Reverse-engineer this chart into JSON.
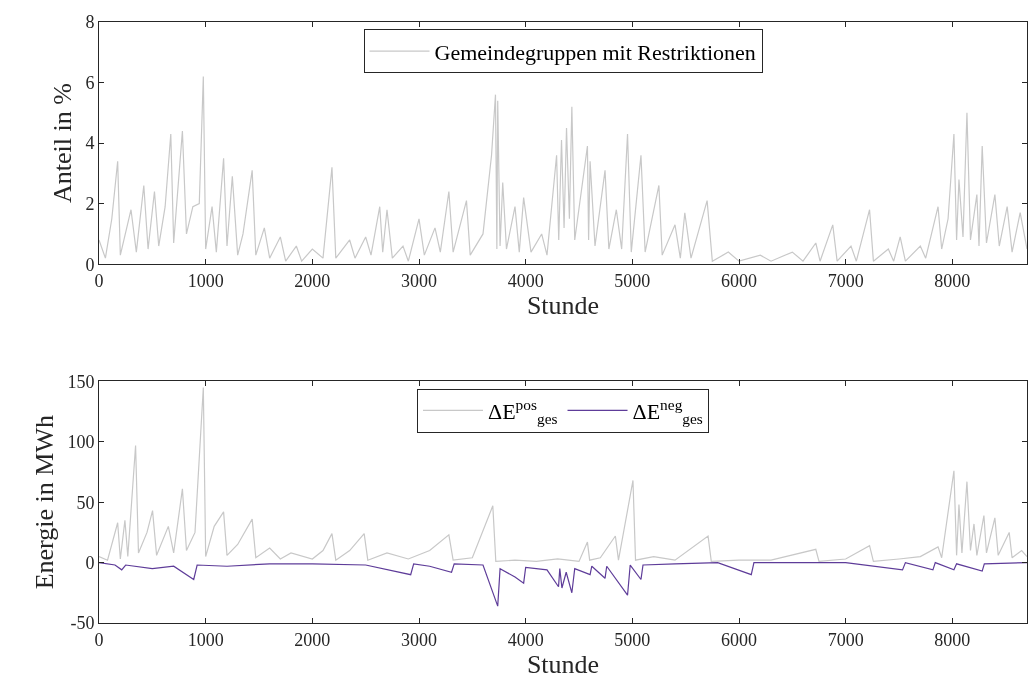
{
  "chart_data": [
    {
      "type": "line",
      "xlabel": "Stunde",
      "ylabel": "Anteil in %",
      "xlim": [
        0,
        8700
      ],
      "xticks": [
        0,
        1000,
        2000,
        3000,
        4000,
        5000,
        6000,
        7000,
        8000
      ],
      "ylim": [
        0,
        8
      ],
      "yticks": [
        0,
        2,
        4,
        6,
        8
      ],
      "legend": "top",
      "marker": "none",
      "line_style": "solid",
      "series": [
        {
          "name": "Gemeindegruppen mit Restriktionen",
          "color": "#c8c8c8",
          "x": [
            0,
            60,
            120,
            175,
            200,
            300,
            350,
            420,
            460,
            520,
            560,
            620,
            673,
            700,
            782,
            820,
            880,
            940,
            978,
            1000,
            1060,
            1100,
            1168,
            1200,
            1250,
            1300,
            1350,
            1436,
            1470,
            1550,
            1600,
            1700,
            1750,
            1850,
            1900,
            2000,
            2100,
            2184,
            2220,
            2350,
            2400,
            2500,
            2550,
            2632,
            2660,
            2700,
            2750,
            2850,
            2900,
            3000,
            3050,
            3150,
            3200,
            3280,
            3320,
            3445,
            3480,
            3600,
            3680,
            3717,
            3730,
            3738,
            3760,
            3785,
            3820,
            3900,
            3940,
            3981,
            4050,
            4150,
            4200,
            4290,
            4310,
            4336,
            4360,
            4383,
            4410,
            4433,
            4460,
            4579,
            4590,
            4604,
            4650,
            4744,
            4780,
            4850,
            4900,
            4955,
            4990,
            5081,
            5120,
            5249,
            5280,
            5400,
            5450,
            5492,
            5550,
            5701,
            5750,
            5900,
            6000,
            6200,
            6300,
            6500,
            6600,
            6720,
            6760,
            6879,
            6920,
            7050,
            7100,
            7224,
            7260,
            7400,
            7450,
            7511,
            7560,
            7700,
            7750,
            7866,
            7900,
            7960,
            8015,
            8040,
            8062,
            8100,
            8137,
            8170,
            8230,
            8250,
            8280,
            8320,
            8399,
            8440,
            8514,
            8560,
            8636,
            8700
          ],
          "values": [
            0.8,
            0.2,
            1.5,
            3.4,
            0.3,
            1.8,
            0.4,
            2.6,
            0.5,
            2.4,
            0.6,
            1.9,
            4.3,
            0.7,
            4.4,
            1.0,
            1.9,
            2.0,
            6.2,
            0.5,
            1.9,
            0.4,
            3.5,
            0.6,
            2.9,
            0.3,
            1.0,
            3.1,
            0.3,
            1.2,
            0.2,
            0.9,
            0.1,
            0.6,
            0.1,
            0.5,
            0.2,
            3.2,
            0.2,
            0.8,
            0.2,
            0.9,
            0.3,
            1.9,
            0.4,
            1.8,
            0.2,
            0.6,
            0.1,
            1.5,
            0.3,
            1.2,
            0.4,
            2.4,
            0.4,
            2.1,
            0.3,
            1.0,
            3.6,
            5.6,
            0.5,
            5.4,
            0.6,
            2.7,
            0.5,
            1.9,
            0.4,
            2.2,
            0.4,
            1.0,
            0.3,
            3.6,
            0.8,
            4.1,
            1.2,
            4.5,
            1.5,
            5.2,
            0.8,
            3.9,
            0.8,
            3.4,
            0.6,
            3.1,
            0.5,
            1.8,
            0.5,
            4.3,
            0.4,
            3.6,
            0.4,
            2.6,
            0.3,
            1.3,
            0.2,
            1.7,
            0.2,
            2.1,
            0.1,
            0.4,
            0.1,
            0.3,
            0.1,
            0.4,
            0.1,
            0.7,
            0.1,
            1.3,
            0.1,
            0.6,
            0.1,
            1.8,
            0.1,
            0.5,
            0.1,
            0.9,
            0.1,
            0.6,
            0.2,
            1.9,
            0.5,
            1.5,
            4.3,
            0.8,
            2.8,
            0.9,
            5.0,
            0.8,
            2.3,
            0.6,
            3.9,
            0.7,
            2.3,
            0.6,
            1.9,
            0.4,
            1.7,
            0.5
          ]
        }
      ]
    },
    {
      "type": "line",
      "xlabel": "Stunde",
      "ylabel": "Energie in MWh",
      "xlim": [
        0,
        8700
      ],
      "xticks": [
        0,
        1000,
        2000,
        3000,
        4000,
        5000,
        6000,
        7000,
        8000
      ],
      "ylim": [
        -50,
        150
      ],
      "yticks": [
        -50,
        0,
        50,
        100,
        150
      ],
      "legend": "top",
      "marker": "none",
      "line_style": "solid",
      "series": [
        {
          "name": "ΔE$^{pos}$$_{ges}$",
          "color": "#c8c8c8",
          "x": [
            0,
            80,
            175,
            200,
            243,
            270,
            343,
            370,
            450,
            502,
            540,
            650,
            700,
            782,
            820,
            900,
            978,
            1000,
            1080,
            1168,
            1200,
            1300,
            1436,
            1470,
            1600,
            1700,
            1800,
            2000,
            2100,
            2184,
            2220,
            2350,
            2486,
            2520,
            2700,
            2900,
            3100,
            3280,
            3320,
            3500,
            3692,
            3720,
            3900,
            4100,
            4300,
            4500,
            4579,
            4600,
            4700,
            4841,
            4870,
            5006,
            5030,
            5200,
            5400,
            5710,
            5740,
            6000,
            6300,
            6720,
            6750,
            7000,
            7224,
            7260,
            7500,
            7700,
            7866,
            7900,
            8015,
            8040,
            8062,
            8090,
            8137,
            8170,
            8203,
            8230,
            8296,
            8320,
            8399,
            8430,
            8533,
            8560,
            8650,
            8700
          ],
          "values": [
            5,
            2,
            33,
            3,
            35,
            5,
            97,
            8,
            25,
            43,
            6,
            30,
            8,
            61,
            10,
            25,
            145,
            5,
            30,
            42,
            6,
            15,
            36,
            4,
            12,
            3,
            8,
            3,
            10,
            24,
            2,
            10,
            24,
            2,
            8,
            3,
            10,
            23,
            2,
            4,
            47,
            1,
            2,
            1,
            3,
            1,
            17,
            2,
            4,
            22,
            2,
            68,
            2,
            5,
            2,
            22,
            1,
            2,
            2,
            11,
            1,
            3,
            14,
            1,
            3,
            5,
            13,
            4,
            76,
            6,
            48,
            8,
            67,
            10,
            32,
            6,
            39,
            8,
            37,
            6,
            25,
            4,
            10,
            5
          ]
        },
        {
          "name": "ΔE$^{neg}$$_{ges}$",
          "color": "#5e3c99",
          "x": [
            0,
            150,
            213,
            250,
            500,
            700,
            888,
            920,
            1200,
            1600,
            2000,
            2500,
            2922,
            2950,
            3100,
            3305,
            3330,
            3600,
            3738,
            3760,
            3900,
            3981,
            4000,
            4200,
            4308,
            4320,
            4340,
            4380,
            4433,
            4460,
            4604,
            4620,
            4744,
            4760,
            4955,
            4980,
            5081,
            5100,
            5400,
            5800,
            6115,
            6140,
            6500,
            7000,
            7533,
            7560,
            7818,
            7840,
            8015,
            8040,
            8280,
            8300,
            8700
          ],
          "values": [
            0,
            -2,
            -6,
            -2,
            -5,
            -3,
            -14,
            -2,
            -3,
            -1,
            -1,
            -2,
            -10,
            -1,
            -3,
            -8,
            -1,
            -2,
            -36,
            -5,
            -12,
            -17,
            -4,
            -6,
            -20,
            -5,
            -21,
            -8,
            -25,
            -5,
            -10,
            -3,
            -13,
            -3,
            -27,
            -2,
            -14,
            -2,
            -1,
            0,
            -10,
            0,
            0,
            0,
            -6,
            0,
            -6,
            0,
            -6,
            -1,
            -7,
            -1,
            0
          ]
        }
      ]
    }
  ]
}
